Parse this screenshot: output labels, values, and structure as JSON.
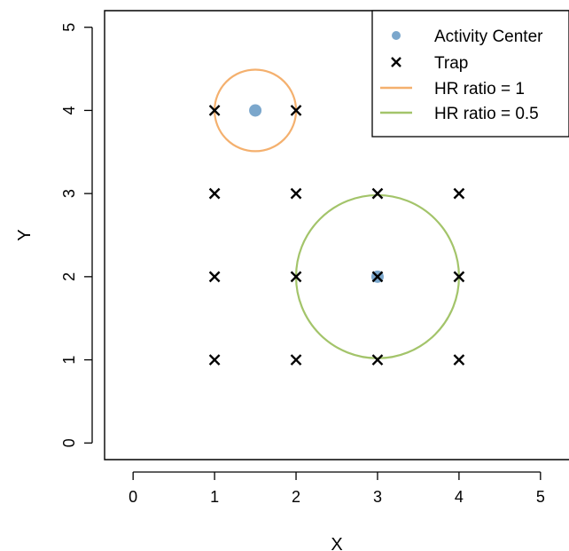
{
  "chart_data": {
    "type": "scatter",
    "title": "",
    "xlabel": "X",
    "ylabel": "Y",
    "xlim": [
      -0.35,
      5.35
    ],
    "ylim": [
      -0.2,
      5.2
    ],
    "xticks": [
      0,
      1,
      2,
      3,
      4,
      5
    ],
    "yticks": [
      0,
      1,
      2,
      3,
      4,
      5
    ],
    "grid": false,
    "legend_position": "top-right",
    "series": [
      {
        "name": "Activity Center",
        "marker": "filled-circle",
        "color": "#7ba7cc",
        "points": [
          [
            1.5,
            4
          ],
          [
            3,
            2
          ]
        ]
      },
      {
        "name": "Trap",
        "marker": "x",
        "color": "#000000",
        "points": [
          [
            1,
            4
          ],
          [
            2,
            4
          ],
          [
            1,
            3
          ],
          [
            2,
            3
          ],
          [
            3,
            3
          ],
          [
            4,
            3
          ],
          [
            1,
            2
          ],
          [
            2,
            2
          ],
          [
            3,
            2
          ],
          [
            4,
            2
          ],
          [
            1,
            1
          ],
          [
            2,
            1
          ],
          [
            3,
            1
          ],
          [
            4,
            1
          ]
        ]
      },
      {
        "name": "HR ratio = 1",
        "marker": "circle-line",
        "color": "#f4b06e",
        "center": [
          1.5,
          4
        ],
        "radius": 0.5
      },
      {
        "name": "HR ratio = 0.5",
        "marker": "circle-line",
        "color": "#a3c46a",
        "center": [
          3,
          2
        ],
        "radius": 1
      }
    ]
  }
}
